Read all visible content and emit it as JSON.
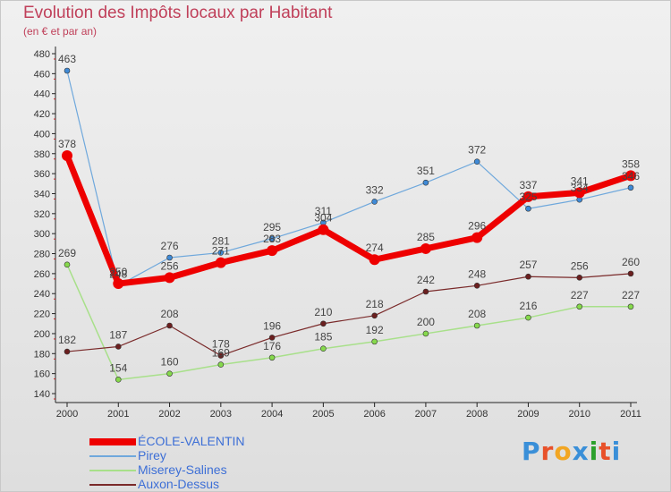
{
  "header": {
    "title": "Evolution des Impôts locaux par Habitant",
    "subtitle": "(en € et par an)"
  },
  "logo": {
    "text": "Proxiti",
    "colors": [
      "#3a8fd8",
      "#e8512a",
      "#f2a623",
      "#3a8fd8",
      "#2ca02c",
      "#e8512a",
      "#3a8fd8"
    ]
  },
  "chart_data": {
    "type": "line",
    "title": "Evolution des Impôts locaux par Habitant",
    "subtitle": "(en € et par an)",
    "categories": [
      "2000",
      "2001",
      "2002",
      "2003",
      "2004",
      "2005",
      "2006",
      "2007",
      "2008",
      "2009",
      "2010",
      "2011"
    ],
    "ylim": [
      140,
      480
    ],
    "yticks": [
      140,
      160,
      180,
      200,
      220,
      240,
      260,
      280,
      300,
      320,
      340,
      360,
      380,
      400,
      420,
      440,
      460,
      480
    ],
    "grid": false,
    "legend_position": "bottom-left",
    "series": [
      {
        "name": "ÉCOLE-VALENTIN",
        "color": "#ee0000",
        "marker": "#ee0000",
        "width": 7,
        "values": [
          378,
          250,
          256,
          271,
          283,
          304,
          274,
          285,
          296,
          337,
          341,
          358
        ]
      },
      {
        "name": "Pirey",
        "color": "#6fa8dc",
        "marker": "#3f8ad6",
        "width": 1.2,
        "values": [
          463,
          248,
          276,
          281,
          295,
          311,
          332,
          351,
          372,
          325,
          334,
          346
        ]
      },
      {
        "name": "Miserey-Salines",
        "color": "#a8e08a",
        "marker": "#86d94c",
        "width": 1.5,
        "values": [
          269,
          154,
          160,
          169,
          176,
          185,
          192,
          200,
          208,
          216,
          227,
          227
        ]
      },
      {
        "name": "Auxon-Dessus",
        "color": "#7a2a2a",
        "marker": "#6b1f1f",
        "width": 1.2,
        "values": [
          182,
          187,
          208,
          178,
          196,
          210,
          218,
          242,
          248,
          257,
          256,
          260
        ]
      }
    ]
  }
}
